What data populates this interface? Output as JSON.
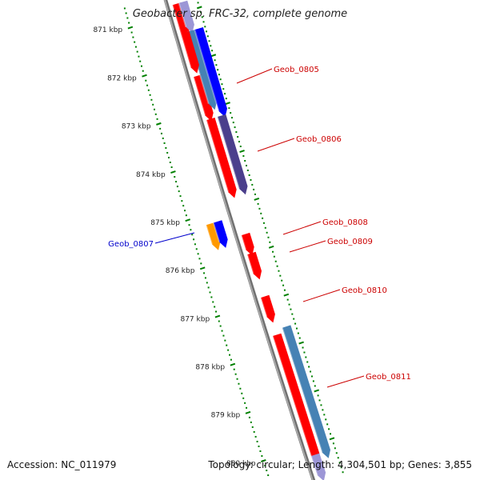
{
  "title": "Geobacter sp. FRC-32, complete genome",
  "accession": "Accession: NC_011979",
  "summary": "Topology: circular; Length: 4,304,501 bp; Genes: 3,855",
  "colors": {
    "red": "#ff0000",
    "blue": "#0000ff",
    "steelblue": "#4682b4",
    "slate": "#4b3f8c",
    "orange": "#ff9900",
    "lavender": "#9c96d6",
    "tick_green": "#008000",
    "label_red": "#cc0000",
    "label_blue": "#0000cc",
    "backbone": "#808080"
  },
  "scale_labels": [
    "871 kbp",
    "872 kbp",
    "873 kbp",
    "874 kbp",
    "875 kbp",
    "876 kbp",
    "877 kbp",
    "878 kbp",
    "879 kbp",
    "880 kbp"
  ],
  "gene_labels": [
    {
      "text": "Geob_0805",
      "color": "red"
    },
    {
      "text": "Geob_0806",
      "color": "red"
    },
    {
      "text": "Geob_0808",
      "color": "red"
    },
    {
      "text": "Geob_0809",
      "color": "red"
    },
    {
      "text": "Geob_0810",
      "color": "red"
    },
    {
      "text": "Geob_0811",
      "color": "red"
    },
    {
      "text": "Geob_0807",
      "color": "blue"
    }
  ],
  "features": [
    {
      "track": 0.5,
      "start": 870.8,
      "end": 871.5,
      "color": "red"
    },
    {
      "track": 1.2,
      "start": 870.8,
      "end": 871.3,
      "color": "lavender"
    },
    {
      "track": 1.2,
      "start": 871.4,
      "end": 872.3,
      "color": "steelblue"
    },
    {
      "track": 2.0,
      "start": 871.4,
      "end": 872.3,
      "color": "blue"
    },
    {
      "track": 0.5,
      "start": 871.4,
      "end": 872.1,
      "color": "red"
    },
    {
      "track": 0.5,
      "start": 872.3,
      "end": 873.1,
      "color": "red"
    },
    {
      "track": 1.2,
      "start": 872.3,
      "end": 872.9,
      "color": "steelblue"
    },
    {
      "track": 2.0,
      "start": 872.3,
      "end": 873.1,
      "color": "blue"
    },
    {
      "track": 0.5,
      "start": 873.2,
      "end": 874.7,
      "color": "red"
    },
    {
      "track": 1.7,
      "start": 873.2,
      "end": 874.7,
      "color": "slate"
    },
    {
      "track": -2.7,
      "start": 875.2,
      "end": 875.6,
      "color": "orange"
    },
    {
      "track": -1.9,
      "start": 875.2,
      "end": 875.6,
      "color": "blue"
    },
    {
      "track": 0.5,
      "start": 875.6,
      "end": 875.9,
      "color": "red"
    },
    {
      "track": 0.5,
      "start": 876.0,
      "end": 876.4,
      "color": "red"
    },
    {
      "track": 0.5,
      "start": 876.9,
      "end": 877.3,
      "color": "red"
    },
    {
      "track": 0.5,
      "start": 877.7,
      "end": 880.2,
      "color": "red"
    },
    {
      "track": 1.7,
      "start": 877.6,
      "end": 880.2,
      "color": "steelblue"
    },
    {
      "track": 0.5,
      "start": 880.2,
      "end": 880.6,
      "color": "lavender"
    }
  ]
}
